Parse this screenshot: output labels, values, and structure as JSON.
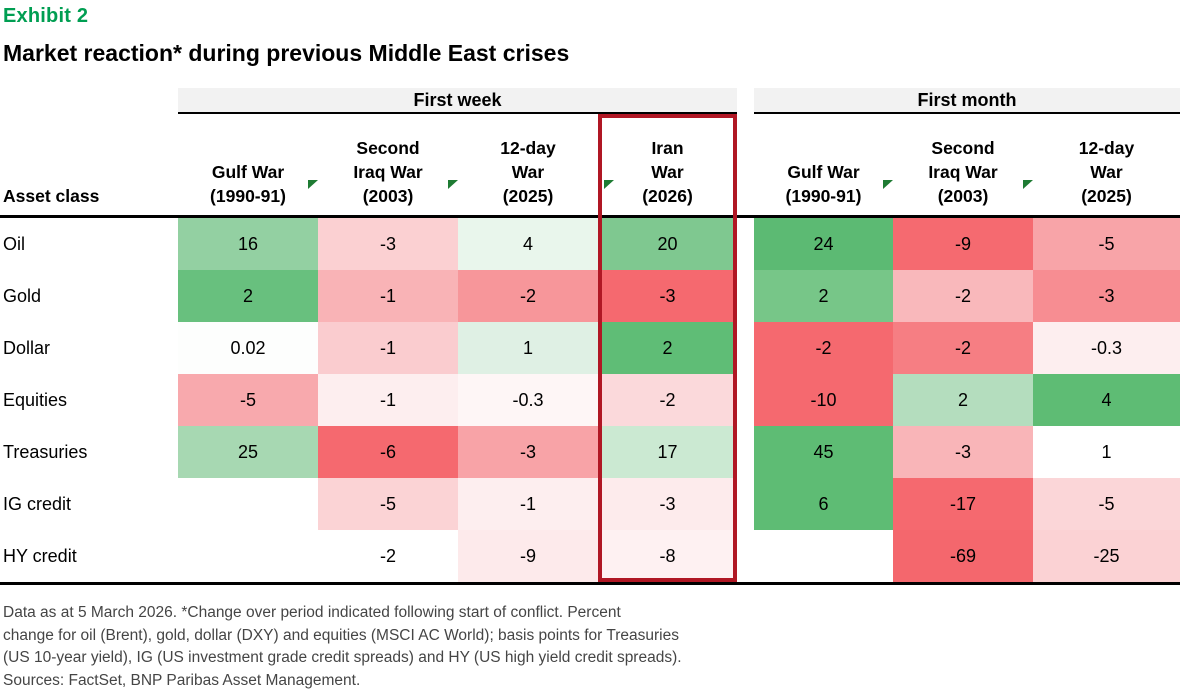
{
  "exhibit_label": "Exhibit 2",
  "title": "Market reaction* during previous Middle East crises",
  "colors": {
    "exhibit_green": "#009E52",
    "marker_green": "#1E7B33",
    "highlight_border_red": "#B01724",
    "group_header_bg": "#F2F2F2",
    "strong_green": "#5EBC74",
    "strong_red": "#F5696F",
    "footnote_gray": "#454545"
  },
  "table": {
    "asset_class_label": "Asset class",
    "groups": [
      {
        "label": "First week",
        "columns": [
          {
            "id": "week-gulf-war",
            "lines": [
              "Gulf War",
              "(1990-91)"
            ],
            "marker": false
          },
          {
            "id": "week-second-iraq-war",
            "lines": [
              "Second",
              "Iraq War",
              "(2003)"
            ],
            "marker": true
          },
          {
            "id": "week-12-day-war",
            "lines": [
              "12-day",
              "War",
              "(2025)"
            ],
            "marker": true
          },
          {
            "id": "week-iran-war",
            "lines": [
              "Iran",
              "War",
              "(2026)"
            ],
            "marker": true,
            "marker_inset": true,
            "highlighted": true
          }
        ]
      },
      {
        "label": "First month",
        "columns": [
          {
            "id": "month-gulf-war",
            "lines": [
              "Gulf War",
              "(1990-91)"
            ],
            "marker": false
          },
          {
            "id": "month-second-iraq-war",
            "lines": [
              "Second",
              "Iraq War",
              "(2003)"
            ],
            "marker": true
          },
          {
            "id": "month-12-day-war",
            "lines": [
              "12-day",
              "War",
              "(2025)"
            ],
            "marker": true
          }
        ]
      }
    ],
    "rows": [
      {
        "label": "Oil",
        "week": [
          {
            "v": "16",
            "bg": "#93D0A2"
          },
          {
            "v": "-3",
            "bg": "#FBD0D2"
          },
          {
            "v": "4",
            "bg": "#E9F6EC"
          },
          {
            "v": "20",
            "bg": "#7FC890"
          }
        ],
        "month": [
          {
            "v": "24",
            "bg": "#5CBA73"
          },
          {
            "v": "-9",
            "bg": "#F56A70"
          },
          {
            "v": "-5",
            "bg": "#F8A4A8"
          }
        ]
      },
      {
        "label": "Gold",
        "week": [
          {
            "v": "2",
            "bg": "#68C07E"
          },
          {
            "v": "-1",
            "bg": "#F9B3B6"
          },
          {
            "v": "-2",
            "bg": "#F7969A"
          },
          {
            "v": "-3",
            "bg": "#F5696F"
          }
        ],
        "month": [
          {
            "v": "2",
            "bg": "#77C688"
          },
          {
            "v": "-2",
            "bg": "#F9B8BB"
          },
          {
            "v": "-3",
            "bg": "#F78D92"
          }
        ]
      },
      {
        "label": "Dollar",
        "week": [
          {
            "v": "0.02",
            "bg": "#FDFEFD"
          },
          {
            "v": "-1",
            "bg": "#FACCCF"
          },
          {
            "v": "1",
            "bg": "#DFF0E4"
          },
          {
            "v": "2",
            "bg": "#5FBD76"
          }
        ],
        "month": [
          {
            "v": "-2",
            "bg": "#F5696F"
          },
          {
            "v": "-2",
            "bg": "#F67E83"
          },
          {
            "v": "-0.3",
            "bg": "#FDEEEF"
          }
        ]
      },
      {
        "label": "Equities",
        "week": [
          {
            "v": "-5",
            "bg": "#F8A9AD"
          },
          {
            "v": "-1",
            "bg": "#FDEEEF"
          },
          {
            "v": "-0.3",
            "bg": "#FEF6F6"
          },
          {
            "v": "-2",
            "bg": "#FBD9DB"
          }
        ],
        "month": [
          {
            "v": "-10",
            "bg": "#F5696F"
          },
          {
            "v": "2",
            "bg": "#B4DDBE"
          },
          {
            "v": "4",
            "bg": "#5EBC74"
          }
        ]
      },
      {
        "label": "Treasuries",
        "week": [
          {
            "v": "25",
            "bg": "#A7D8B2"
          },
          {
            "v": "-6",
            "bg": "#F5696F"
          },
          {
            "v": "-3",
            "bg": "#F8A3A7"
          },
          {
            "v": "17",
            "bg": "#CBE9D2"
          }
        ],
        "month": [
          {
            "v": "45",
            "bg": "#5EBC74"
          },
          {
            "v": "-3",
            "bg": "#F9B5B8"
          },
          {
            "v": "1",
            "bg": "#FFFFFF"
          }
        ]
      },
      {
        "label": "IG credit",
        "week": [
          {
            "v": "",
            "bg": "#FFFFFF"
          },
          {
            "v": "-5",
            "bg": "#FBD3D5"
          },
          {
            "v": "-1",
            "bg": "#FDEEEF"
          },
          {
            "v": "-3",
            "bg": "#FDEBEC"
          }
        ],
        "month": [
          {
            "v": "6",
            "bg": "#5EBC74"
          },
          {
            "v": "-17",
            "bg": "#F5696F"
          },
          {
            "v": "-5",
            "bg": "#FBD6D8"
          }
        ]
      },
      {
        "label": "HY credit",
        "week": [
          {
            "v": "",
            "bg": "#FFFFFF"
          },
          {
            "v": "-2",
            "bg": "#FFFFFF"
          },
          {
            "v": "-9",
            "bg": "#FDEAEB"
          },
          {
            "v": "-8",
            "bg": "#FEF1F2"
          }
        ],
        "month": [
          {
            "v": "",
            "bg": "#FFFFFF"
          },
          {
            "v": "-69",
            "bg": "#F4676D"
          },
          {
            "v": "-25",
            "bg": "#FBD2D4"
          }
        ]
      }
    ]
  },
  "chart_data": {
    "type": "heatmap",
    "title": "Market reaction* during previous Middle East crises",
    "row_label_header": "Asset class",
    "rows": [
      "Oil",
      "Gold",
      "Dollar",
      "Equities",
      "Treasuries",
      "IG credit",
      "HY credit"
    ],
    "column_groups": [
      {
        "name": "First week",
        "columns": [
          "Gulf War (1990-91)",
          "Second Iraq War (2003)",
          "12-day War (2025)",
          "Iran War (2026)"
        ]
      },
      {
        "name": "First month",
        "columns": [
          "Gulf War (1990-91)",
          "Second Iraq War (2003)",
          "12-day War (2025)"
        ]
      }
    ],
    "values": {
      "first_week": [
        [
          16,
          -3,
          4,
          20
        ],
        [
          2,
          -1,
          -2,
          -3
        ],
        [
          0.02,
          -1,
          1,
          2
        ],
        [
          -5,
          -1,
          -0.3,
          -2
        ],
        [
          25,
          -6,
          -3,
          17
        ],
        [
          null,
          -5,
          -1,
          -3
        ],
        [
          null,
          -2,
          -9,
          -8
        ]
      ],
      "first_month": [
        [
          24,
          -9,
          -5
        ],
        [
          2,
          -2,
          -3
        ],
        [
          -2,
          -2,
          -0.3
        ],
        [
          -10,
          2,
          4
        ],
        [
          45,
          -3,
          1
        ],
        [
          6,
          -17,
          -5
        ],
        [
          null,
          -69,
          -25
        ]
      ]
    },
    "highlighted_column": "Iran War (2026)",
    "color_scale": "red-white-green diverging per asset-class row"
  },
  "footnote": "Data as at 5 March 2026. *Change over period indicated following start of conflict. Percent\nchange for oil (Brent), gold, dollar (DXY) and equities (MSCI AC World); basis points for Treasuries\n(US 10-year yield), IG (US investment grade credit spreads) and HY (US high yield credit spreads).\nSources: FactSet, BNP Paribas Asset Management."
}
